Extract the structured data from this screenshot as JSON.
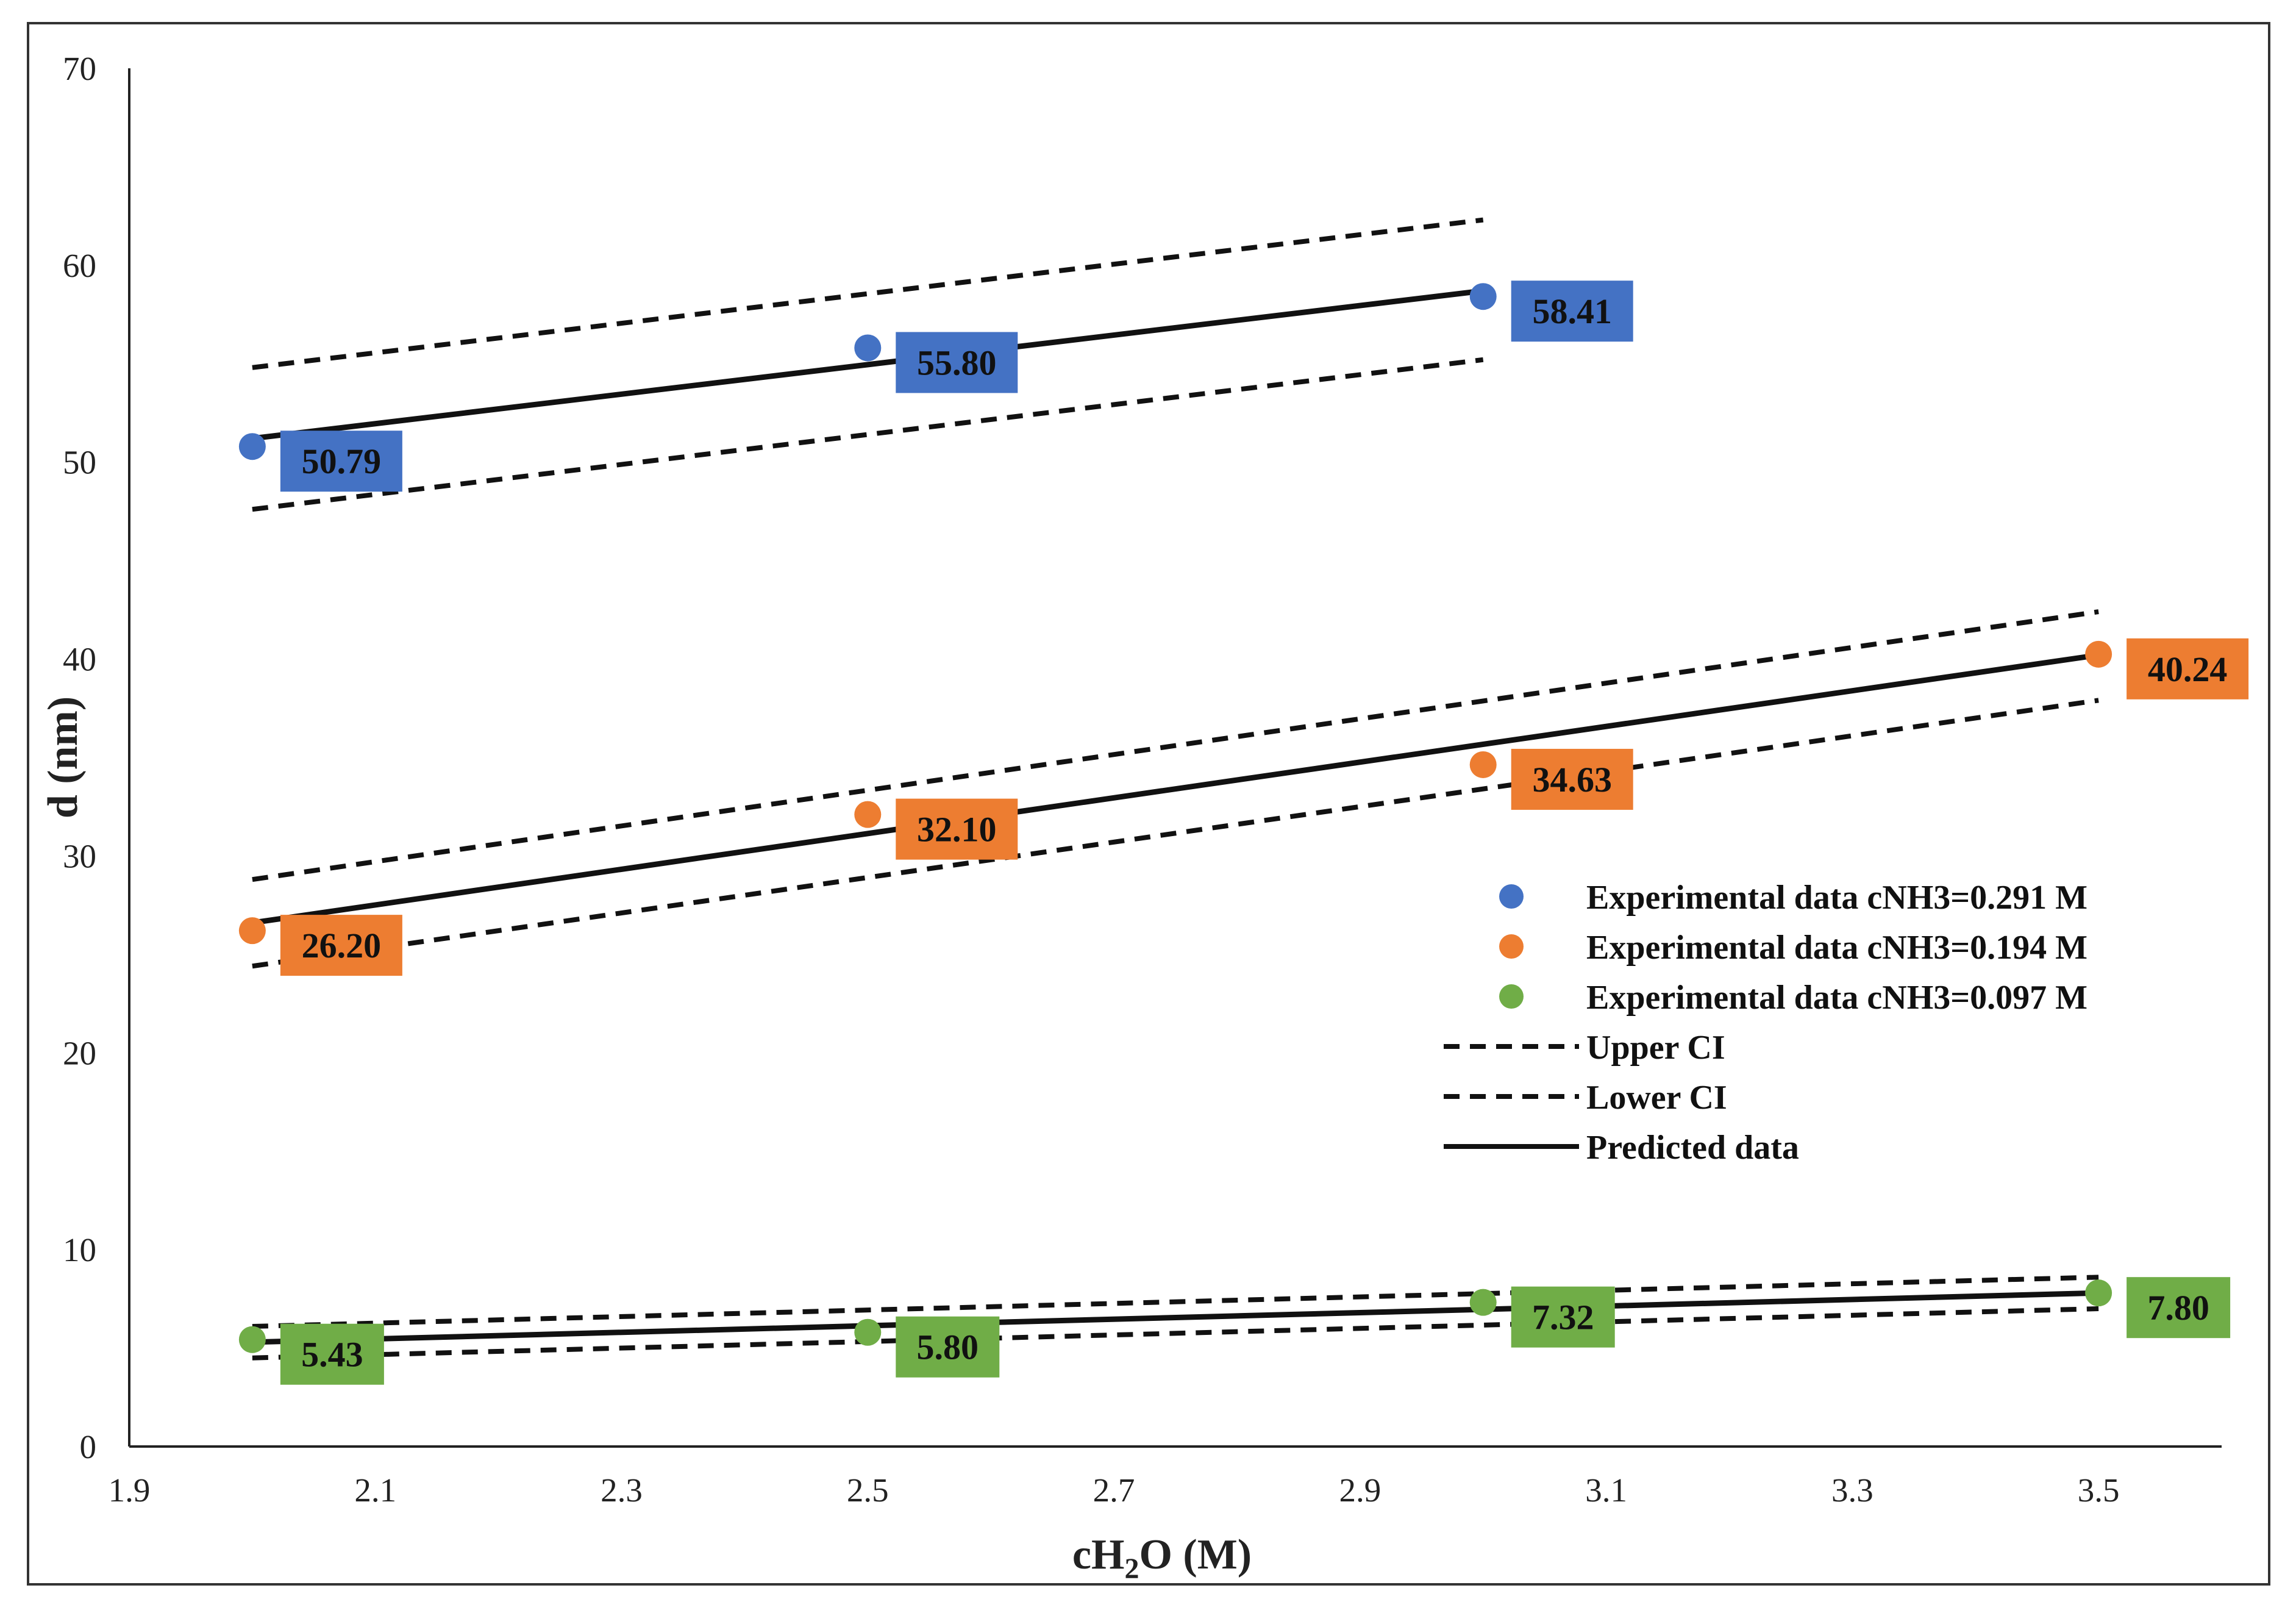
{
  "chart_data": {
    "type": "scatter",
    "xlabel": "cH2O (M)",
    "xlabel_parts": {
      "pre": "cH",
      "sub": "2",
      "post": "O (M)"
    },
    "ylabel": "d (nm)",
    "xlim": [
      1.9,
      3.6
    ],
    "ylim": [
      0,
      70
    ],
    "x_ticks": [
      "1.9",
      "2.1",
      "2.3",
      "2.5",
      "2.7",
      "2.9",
      "3.1",
      "3.3",
      "3.5"
    ],
    "y_ticks": [
      "0",
      "10",
      "20",
      "30",
      "40",
      "50",
      "60",
      "70"
    ],
    "grid": false,
    "legend_position": "center-right",
    "series": [
      {
        "name": "Experimental data cNH3=0.291 M",
        "color": "#4472C4",
        "points": [
          {
            "x": 2.0,
            "y": 50.79,
            "label": "50.79"
          },
          {
            "x": 2.5,
            "y": 55.8,
            "label": "55.80"
          },
          {
            "x": 3.0,
            "y": 58.41,
            "label": "58.41"
          }
        ],
        "predicted": [
          [
            2.0,
            51.2
          ],
          [
            3.0,
            58.7
          ]
        ],
        "upper_ci": [
          [
            2.0,
            54.8
          ],
          [
            3.0,
            62.3
          ]
        ],
        "lower_ci": [
          [
            2.0,
            47.6
          ],
          [
            3.0,
            55.2
          ]
        ]
      },
      {
        "name": "Experimental data cNH3=0.194 M",
        "color": "#ED7D31",
        "points": [
          {
            "x": 2.0,
            "y": 26.2,
            "label": "26.20"
          },
          {
            "x": 2.5,
            "y": 32.1,
            "label": "32.10"
          },
          {
            "x": 3.0,
            "y": 34.63,
            "label": "34.63"
          },
          {
            "x": 3.5,
            "y": 40.24,
            "label": "40.24"
          }
        ],
        "predicted": [
          [
            2.0,
            26.6
          ],
          [
            3.5,
            40.2
          ]
        ],
        "upper_ci": [
          [
            2.0,
            28.8
          ],
          [
            3.5,
            42.4
          ]
        ],
        "lower_ci": [
          [
            2.0,
            24.4
          ],
          [
            3.5,
            37.9
          ]
        ]
      },
      {
        "name": "Experimental data cNH3=0.097 M",
        "color": "#70AD47",
        "points": [
          {
            "x": 2.0,
            "y": 5.43,
            "label": "5.43"
          },
          {
            "x": 2.5,
            "y": 5.8,
            "label": "5.80"
          },
          {
            "x": 3.0,
            "y": 7.32,
            "label": "7.32"
          },
          {
            "x": 3.5,
            "y": 7.8,
            "label": "7.80"
          }
        ],
        "predicted": [
          [
            2.0,
            5.3
          ],
          [
            3.5,
            7.8
          ]
        ],
        "upper_ci": [
          [
            2.0,
            6.1
          ],
          [
            3.5,
            8.6
          ]
        ],
        "lower_ci": [
          [
            2.0,
            4.5
          ],
          [
            3.5,
            7.0
          ]
        ]
      }
    ],
    "legend": [
      {
        "kind": "marker",
        "series": 0,
        "label": "Experimental data cNH3=0.291 M"
      },
      {
        "kind": "marker",
        "series": 1,
        "label": "Experimental data cNH3=0.194 M"
      },
      {
        "kind": "marker",
        "series": 2,
        "label": "Experimental data cNH3=0.097 M"
      },
      {
        "kind": "dashed",
        "label": "Upper CI"
      },
      {
        "kind": "dashed",
        "label": "Lower CI"
      },
      {
        "kind": "solid",
        "label": "Predicted data"
      }
    ]
  }
}
